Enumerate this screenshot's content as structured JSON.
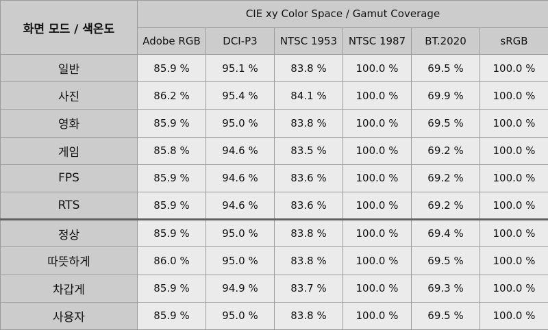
{
  "table": {
    "corner_label": "화면 모드 / 색온도",
    "group_header": "CIE xy Color Space / Gamut Coverage",
    "columns": [
      "Adobe RGB",
      "DCI-P3",
      "NTSC 1953",
      "NTSC 1987",
      "BT.2020",
      "sRGB"
    ],
    "rows": [
      {
        "label": "일반",
        "values": [
          "85.9 %",
          "95.1 %",
          "83.8 %",
          "100.0 %",
          "69.5 %",
          "100.0 %"
        ]
      },
      {
        "label": "사진",
        "values": [
          "86.2 %",
          "95.4 %",
          "84.1 %",
          "100.0 %",
          "69.9 %",
          "100.0 %"
        ]
      },
      {
        "label": "영화",
        "values": [
          "85.9 %",
          "95.0 %",
          "83.8 %",
          "100.0 %",
          "69.5 %",
          "100.0 %"
        ]
      },
      {
        "label": "게임",
        "values": [
          "85.8 %",
          "94.6 %",
          "83.5 %",
          "100.0 %",
          "69.2 %",
          "100.0 %"
        ]
      },
      {
        "label": "FPS",
        "values": [
          "85.9 %",
          "94.6 %",
          "83.6 %",
          "100.0 %",
          "69.2 %",
          "100.0 %"
        ]
      },
      {
        "label": "RTS",
        "values": [
          "85.9 %",
          "94.6 %",
          "83.6 %",
          "100.0 %",
          "69.2 %",
          "100.0 %"
        ]
      },
      {
        "label": "정상",
        "values": [
          "85.9 %",
          "95.0 %",
          "83.8 %",
          "100.0 %",
          "69.4 %",
          "100.0 %"
        ]
      },
      {
        "label": "따뜻하게",
        "values": [
          "86.0 %",
          "95.0 %",
          "83.8 %",
          "100.0 %",
          "69.5 %",
          "100.0 %"
        ]
      },
      {
        "label": "차갑게",
        "values": [
          "85.9 %",
          "94.9 %",
          "83.7 %",
          "100.0 %",
          "69.3 %",
          "100.0 %"
        ]
      },
      {
        "label": "사용자",
        "values": [
          "85.9 %",
          "95.0 %",
          "83.8 %",
          "100.0 %",
          "69.5 %",
          "100.0 %"
        ]
      }
    ]
  },
  "colors": {
    "header_bg": "#cccccc",
    "cell_bg": "#ebebeb",
    "border": "#9a9a9a",
    "separator": "#606060"
  }
}
